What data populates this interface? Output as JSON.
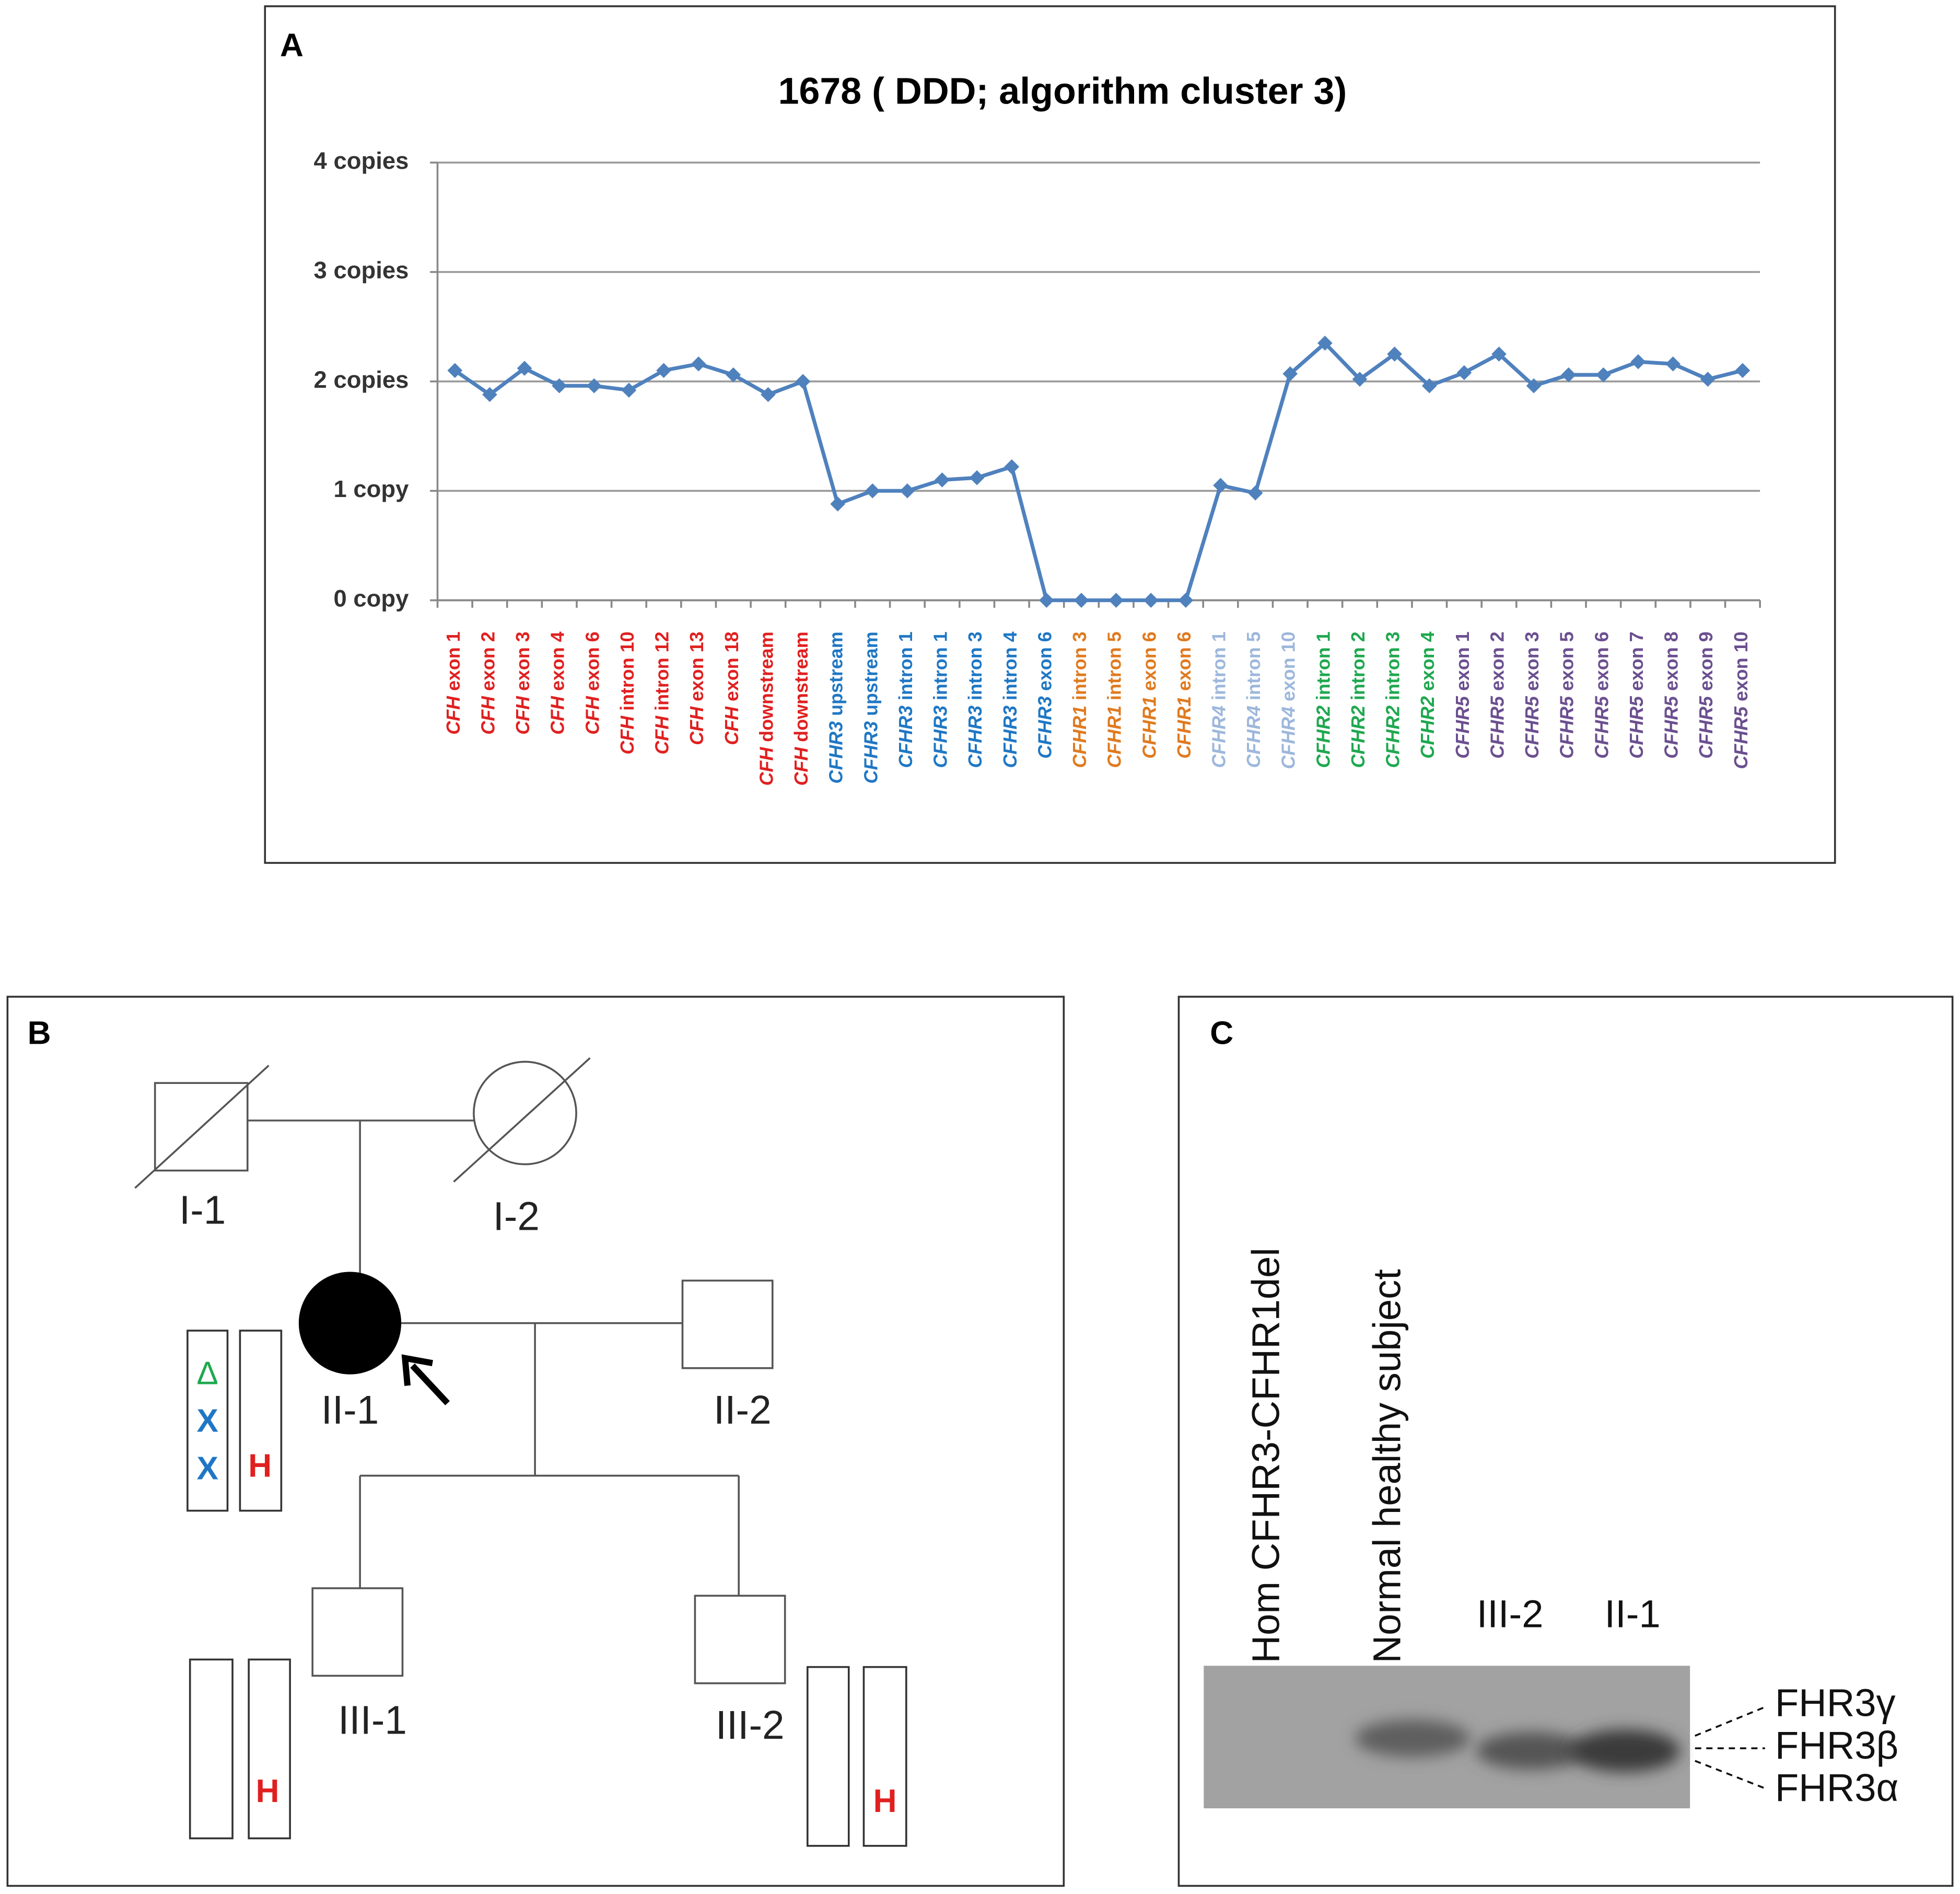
{
  "chart_data": {
    "type": "line",
    "panel_label": "A",
    "title": "1678 ( DDD; algorithm cluster 3)",
    "categories": [
      "CFH exon 1",
      "CFH exon 2",
      "CFH exon 3",
      "CFH exon 4",
      "CFH exon 6",
      "CFH intron 10",
      "CFH intron 12",
      "CFH exon 13",
      "CFH exon 18",
      "CFH downstream",
      "CFH downstream",
      "CFHR3 upstream",
      "CFHR3 upstream",
      "CFHR3 intron 1",
      "CFHR3 intron 1",
      "CFHR3 intron 3",
      "CFHR3 intron 4",
      "CFHR3 exon 6",
      "CFHR1 intron 3",
      "CFHR1 intron 5",
      "CFHR1 exon 6",
      "CFHR1 exon 6",
      "CFHR4 intron 1",
      "CFHR4 intron 5",
      "CFHR4 exon 10",
      "CFHR2 intron 1",
      "CFHR2 intron 2",
      "CFHR2 intron 3",
      "CFHR2 exon 4",
      "CFHR5 exon 1",
      "CFHR5 exon 2",
      "CFHR5 exon 3",
      "CFHR5 exon 5",
      "CFHR5 exon 6",
      "CFHR5 exon 7",
      "CFHR5 exon 8",
      "CFHR5 exon 9",
      "CFHR5 exon 10"
    ],
    "label_colors": [
      "#e02020",
      "#e02020",
      "#e02020",
      "#e02020",
      "#e02020",
      "#e02020",
      "#e02020",
      "#e02020",
      "#e02020",
      "#e02020",
      "#e02020",
      "#1f77c4",
      "#1f77c4",
      "#1f77c4",
      "#1f77c4",
      "#1f77c4",
      "#1f77c4",
      "#1f77c4",
      "#e07a1f",
      "#e07a1f",
      "#e07a1f",
      "#e07a1f",
      "#9db7dc",
      "#9db7dc",
      "#9db7dc",
      "#1fa84f",
      "#1fa84f",
      "#1fa84f",
      "#1fa84f",
      "#6b4f8f",
      "#6b4f8f",
      "#6b4f8f",
      "#6b4f8f",
      "#6b4f8f",
      "#6b4f8f",
      "#6b4f8f",
      "#6b4f8f",
      "#6b4f8f"
    ],
    "series": [
      {
        "color": "#4f81bd",
        "values": [
          2.1,
          1.88,
          2.12,
          1.96,
          1.96,
          1.92,
          2.1,
          2.16,
          2.06,
          1.88,
          2.0,
          0.88,
          1.0,
          1.0,
          1.1,
          1.12,
          1.22,
          0,
          0,
          0,
          0,
          0,
          1.05,
          0.98,
          2.07,
          2.35,
          2.02,
          2.25,
          1.96,
          2.08,
          2.25,
          1.96,
          2.06,
          2.06,
          2.18,
          2.16,
          2.02,
          2.1
        ]
      }
    ],
    "ylim": [
      0,
      4
    ],
    "yticks": [
      {
        "value": 0,
        "label": "0 copy"
      },
      {
        "value": 1,
        "label": "1 copy"
      },
      {
        "value": 2,
        "label": "2 copies"
      },
      {
        "value": 3,
        "label": "3 copies"
      },
      {
        "value": 4,
        "label": "4 copies"
      }
    ],
    "grid": true
  },
  "pedigree": {
    "panel_label": "B",
    "individuals": [
      "I-1",
      "I-2",
      "II-1",
      "II-2",
      "III-1",
      "III-2"
    ],
    "markers": [
      "Δ",
      "X",
      "X",
      "H",
      "H",
      "H"
    ]
  },
  "gel": {
    "panel_label": "C",
    "lanes": [
      "Hom CFHR3-CFHR1del",
      "Normal healthy subject",
      "III-2",
      "II-1"
    ],
    "bands": [
      "FHR3γ",
      "FHR3β",
      "FHR3α"
    ]
  }
}
